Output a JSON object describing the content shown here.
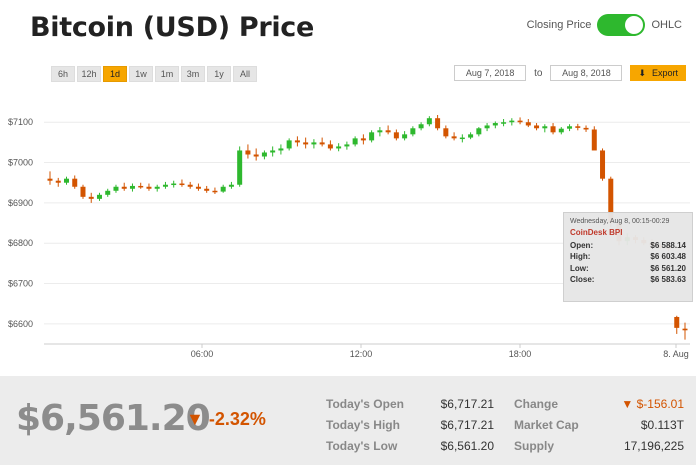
{
  "header": {
    "title": "Bitcoin (USD) Price"
  },
  "toggle": {
    "left_label": "Closing Price",
    "right_label": "OHLC",
    "on": true,
    "color": "#2eb82e"
  },
  "ranges": [
    "6h",
    "12h",
    "1d",
    "1w",
    "1m",
    "3m",
    "1y",
    "All"
  ],
  "active_range": "1d",
  "date_range": {
    "from": "Aug 7, 2018",
    "to_label": "to",
    "to": "Aug 8, 2018",
    "export_label": "Export"
  },
  "colors": {
    "accent": "#f7a600",
    "up": "#2eb82e",
    "down": "#d35400"
  },
  "chart_data": {
    "type": "candlestick",
    "title": "",
    "y_ticks": [
      "$7100",
      "$7000",
      "$6900",
      "$6800",
      "$6700",
      "$6600"
    ],
    "ylim": [
      6550,
      7175
    ],
    "x_ticks": [
      "06:00",
      "12:00",
      "18:00",
      "8. Aug"
    ],
    "grid": true,
    "series": [
      {
        "values": [
          [
            6960,
            6978,
            6945,
            6955
          ],
          [
            6955,
            6962,
            6940,
            6950
          ],
          [
            6950,
            6965,
            6945,
            6960
          ],
          [
            6960,
            6968,
            6935,
            6940
          ],
          [
            6940,
            6945,
            6910,
            6915
          ],
          [
            6915,
            6925,
            6900,
            6910
          ],
          [
            6910,
            6925,
            6905,
            6920
          ],
          [
            6920,
            6935,
            6915,
            6930
          ],
          [
            6930,
            6945,
            6925,
            6940
          ],
          [
            6940,
            6950,
            6930,
            6935
          ],
          [
            6935,
            6948,
            6928,
            6942
          ],
          [
            6942,
            6950,
            6935,
            6940
          ],
          [
            6940,
            6948,
            6930,
            6935
          ],
          [
            6935,
            6945,
            6928,
            6940
          ],
          [
            6940,
            6952,
            6935,
            6945
          ],
          [
            6945,
            6955,
            6938,
            6948
          ],
          [
            6948,
            6958,
            6940,
            6945
          ],
          [
            6945,
            6952,
            6935,
            6940
          ],
          [
            6940,
            6948,
            6930,
            6935
          ],
          [
            6935,
            6942,
            6925,
            6930
          ],
          [
            6930,
            6938,
            6922,
            6928
          ],
          [
            6928,
            6945,
            6925,
            6940
          ],
          [
            6940,
            6952,
            6935,
            6945
          ],
          [
            6945,
            7040,
            6940,
            7030
          ],
          [
            7030,
            7045,
            7010,
            7020
          ],
          [
            7020,
            7035,
            7005,
            7015
          ],
          [
            7015,
            7030,
            7008,
            7025
          ],
          [
            7025,
            7040,
            7015,
            7030
          ],
          [
            7030,
            7045,
            7020,
            7035
          ],
          [
            7035,
            7060,
            7030,
            7055
          ],
          [
            7055,
            7065,
            7040,
            7050
          ],
          [
            7050,
            7062,
            7035,
            7045
          ],
          [
            7045,
            7058,
            7035,
            7050
          ],
          [
            7050,
            7062,
            7040,
            7045
          ],
          [
            7045,
            7055,
            7030,
            7035
          ],
          [
            7035,
            7048,
            7028,
            7040
          ],
          [
            7040,
            7052,
            7032,
            7045
          ],
          [
            7045,
            7065,
            7040,
            7060
          ],
          [
            7060,
            7070,
            7045,
            7055
          ],
          [
            7055,
            7080,
            7050,
            7075
          ],
          [
            7075,
            7088,
            7065,
            7080
          ],
          [
            7080,
            7092,
            7070,
            7075
          ],
          [
            7075,
            7082,
            7055,
            7060
          ],
          [
            7060,
            7078,
            7055,
            7070
          ],
          [
            7070,
            7090,
            7065,
            7085
          ],
          [
            7085,
            7100,
            7080,
            7095
          ],
          [
            7095,
            7115,
            7090,
            7110
          ],
          [
            7110,
            7118,
            7080,
            7085
          ],
          [
            7085,
            7092,
            7060,
            7065
          ],
          [
            7065,
            7075,
            7055,
            7060
          ],
          [
            7060,
            7070,
            7050,
            7062
          ],
          [
            7062,
            7075,
            7058,
            7070
          ],
          [
            7070,
            7088,
            7065,
            7085
          ],
          [
            7085,
            7098,
            7078,
            7092
          ],
          [
            7092,
            7102,
            7085,
            7098
          ],
          [
            7098,
            7108,
            7090,
            7100
          ],
          [
            7100,
            7110,
            7092,
            7104
          ],
          [
            7104,
            7112,
            7095,
            7100
          ],
          [
            7100,
            7108,
            7088,
            7092
          ],
          [
            7092,
            7098,
            7080,
            7085
          ],
          [
            7085,
            7095,
            7075,
            7090
          ],
          [
            7090,
            7098,
            7070,
            7075
          ],
          [
            7075,
            7088,
            7070,
            7084
          ],
          [
            7084,
            7095,
            7078,
            7090
          ],
          [
            7090,
            7096,
            7080,
            7086
          ],
          [
            7086,
            7092,
            7076,
            7082
          ],
          [
            7082,
            7090,
            7060,
            7030
          ],
          [
            7030,
            7035,
            6955,
            6960
          ],
          [
            6960,
            6965,
            6840,
            6850
          ],
          [
            6850,
            6855,
            6795,
            6805
          ],
          [
            6805,
            6825,
            6795,
            6815
          ],
          [
            6815,
            6820,
            6800,
            6808
          ],
          [
            6808,
            6815,
            6795,
            6800
          ],
          [
            6800,
            6810,
            6790,
            6795
          ],
          [
            6795,
            6800,
            6785,
            6790
          ],
          [
            6790,
            6798,
            6780,
            6788
          ],
          [
            6617,
            6620,
            6575,
            6590
          ],
          [
            6588,
            6603,
            6561,
            6584
          ]
        ]
      }
    ]
  },
  "tooltip": {
    "time": "Wednesday, Aug 8, 00:15-00:29",
    "source": "CoinDesk BPI",
    "rows": [
      {
        "label": "Open:",
        "value": "$6 588.14"
      },
      {
        "label": "High:",
        "value": "$6 603.48"
      },
      {
        "label": "Low:",
        "value": "$6 561.20"
      },
      {
        "label": "Close:",
        "value": "$6 583.63"
      }
    ]
  },
  "footer": {
    "price": "$6,561.20",
    "change_pct": "-2.32%",
    "stats_left": [
      {
        "label": "Today's Open",
        "value": "$6,717.21"
      },
      {
        "label": "Today's High",
        "value": "$6,717.21"
      },
      {
        "label": "Today's Low",
        "value": "$6,561.20"
      }
    ],
    "stats_right": [
      {
        "label": "Change",
        "value": "$-156.01"
      },
      {
        "label": "Market Cap",
        "value": "$0.113T"
      },
      {
        "label": "Supply",
        "value": "17,196,225"
      }
    ]
  }
}
